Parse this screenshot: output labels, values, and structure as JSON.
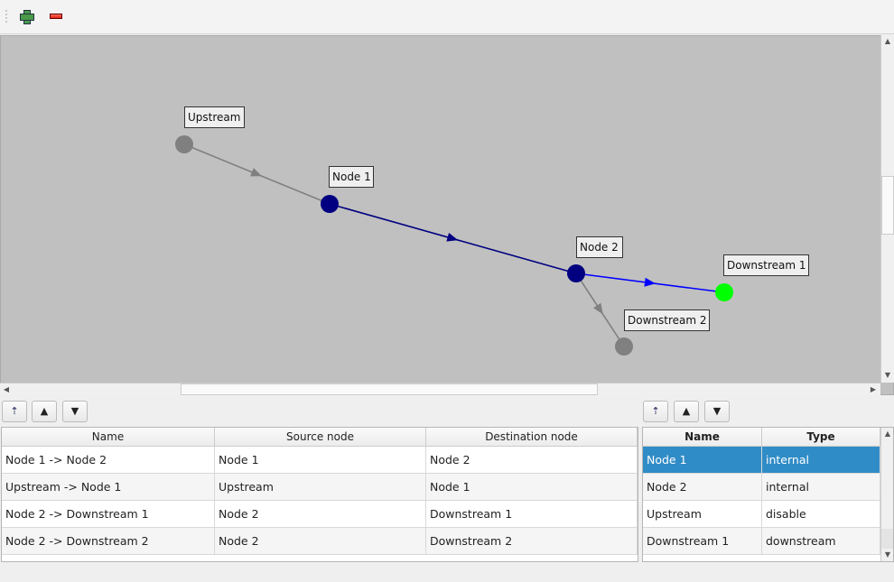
{
  "toolbar": {
    "add_icon": "plus-icon",
    "remove_icon": "minus-icon"
  },
  "graph": {
    "nodes": [
      {
        "name": "Upstream",
        "color": "#808080"
      },
      {
        "name": "Node 1",
        "color": "#000080"
      },
      {
        "name": "Node 2",
        "color": "#000080"
      },
      {
        "name": "Downstream 1",
        "color": "#00ff00"
      },
      {
        "name": "Downstream 2",
        "color": "#808080"
      }
    ],
    "edges": [
      {
        "from": "Upstream",
        "to": "Node 1",
        "color": "#808080"
      },
      {
        "from": "Node 1",
        "to": "Node 2",
        "color": "#000080"
      },
      {
        "from": "Node 2",
        "to": "Downstream 1",
        "color": "#0000ff"
      },
      {
        "from": "Node 2",
        "to": "Downstream 2",
        "color": "#808080"
      }
    ]
  },
  "edges_table": {
    "columns": [
      "Name",
      "Source node",
      "Destination node"
    ],
    "rows": [
      [
        "Node 1 -> Node 2",
        "Node 1",
        "Node 2"
      ],
      [
        "Upstream -> Node 1",
        "Upstream",
        "Node 1"
      ],
      [
        "Node 2 -> Downstream 1",
        "Node 2",
        "Downstream 1"
      ],
      [
        "Node 2 -> Downstream 2",
        "Node 2",
        "Downstream 2"
      ]
    ]
  },
  "nodes_table": {
    "columns": [
      "Name",
      "Type"
    ],
    "selected_row": 0,
    "rows": [
      [
        "Node 1",
        "internal"
      ],
      [
        "Node 2",
        "internal"
      ],
      [
        "Upstream",
        "disable"
      ],
      [
        "Downstream 1",
        "downstream"
      ]
    ]
  },
  "buttons": {
    "sort": "sort-icon",
    "up": "▲",
    "down": "▼"
  }
}
